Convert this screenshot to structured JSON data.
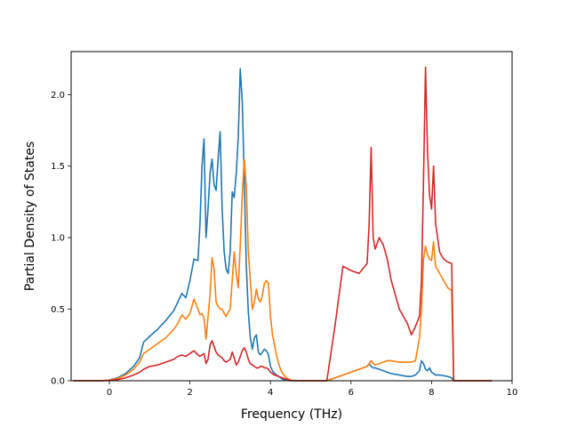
{
  "chart_data": {
    "type": "line",
    "title": "",
    "xlabel": "Frequency (THz)",
    "ylabel": "Partial Density of States",
    "xlim": [
      -0.95,
      10.0
    ],
    "ylim": [
      0.0,
      2.3
    ],
    "xticks": [
      0,
      2,
      4,
      6,
      8,
      10
    ],
    "yticks": [
      0.0,
      0.5,
      1.0,
      1.5,
      2.0
    ],
    "xtick_labels": [
      "0",
      "2",
      "4",
      "6",
      "8",
      "10"
    ],
    "ytick_labels": [
      "0.0",
      "0.5",
      "1.0",
      "1.5",
      "2.0"
    ],
    "grid": false,
    "legend": "none",
    "series": [
      {
        "color": "#1f77b4",
        "x": [
          -0.9,
          -0.2,
          0,
          0.2,
          0.4,
          0.6,
          0.75,
          0.85,
          1.0,
          1.2,
          1.4,
          1.6,
          1.7,
          1.8,
          1.9,
          2.0,
          2.1,
          2.2,
          2.25,
          2.3,
          2.35,
          2.4,
          2.45,
          2.5,
          2.55,
          2.6,
          2.65,
          2.7,
          2.75,
          2.8,
          2.85,
          2.9,
          2.95,
          3.0,
          3.05,
          3.1,
          3.15,
          3.2,
          3.25,
          3.3,
          3.35,
          3.4,
          3.45,
          3.5,
          3.55,
          3.6,
          3.65,
          3.7,
          3.75,
          3.8,
          3.85,
          3.9,
          3.95,
          4.0,
          4.05,
          4.1,
          4.15,
          4.2,
          4.25,
          4.3,
          4.4,
          4.5,
          4.6,
          4.8,
          5.0,
          5.2,
          5.4,
          5.6,
          5.8,
          6.0,
          6.2,
          6.4,
          6.45,
          6.5,
          6.55,
          6.6,
          6.7,
          6.8,
          6.9,
          7.0,
          7.2,
          7.4,
          7.5,
          7.6,
          7.7,
          7.75,
          7.8,
          7.85,
          7.9,
          7.95,
          8.0,
          8.05,
          8.1,
          8.2,
          8.3,
          8.4,
          8.5,
          8.55,
          8.6,
          8.7,
          9.0,
          9.5
        ],
        "y": [
          0,
          0,
          0.005,
          0.02,
          0.05,
          0.1,
          0.16,
          0.27,
          0.31,
          0.36,
          0.42,
          0.49,
          0.55,
          0.61,
          0.58,
          0.7,
          0.85,
          0.84,
          1.1,
          1.5,
          1.69,
          1.0,
          1.2,
          1.45,
          1.55,
          1.37,
          1.33,
          1.55,
          1.74,
          1.2,
          0.9,
          0.78,
          0.75,
          0.9,
          1.32,
          1.28,
          1.45,
          1.7,
          2.18,
          1.95,
          1.4,
          0.8,
          0.48,
          0.3,
          0.22,
          0.3,
          0.32,
          0.2,
          0.18,
          0.2,
          0.22,
          0.21,
          0.18,
          0.1,
          0.07,
          0.05,
          0.04,
          0.03,
          0.02,
          0.01,
          0.003,
          0,
          0,
          0,
          0,
          0,
          0,
          0.02,
          0.04,
          0.06,
          0.08,
          0.1,
          0.12,
          0.1,
          0.09,
          0.09,
          0.08,
          0.07,
          0.06,
          0.05,
          0.04,
          0.03,
          0.03,
          0.04,
          0.07,
          0.14,
          0.12,
          0.08,
          0.07,
          0.09,
          0.06,
          0.05,
          0.04,
          0.04,
          0.035,
          0.03,
          0.02,
          0,
          0,
          0,
          0,
          0
        ]
      },
      {
        "color": "#ff7f0e",
        "x": [
          -0.9,
          -0.2,
          0,
          0.2,
          0.4,
          0.6,
          0.75,
          0.85,
          1.0,
          1.2,
          1.4,
          1.6,
          1.7,
          1.8,
          1.9,
          2.0,
          2.1,
          2.2,
          2.25,
          2.3,
          2.35,
          2.4,
          2.45,
          2.5,
          2.55,
          2.6,
          2.65,
          2.7,
          2.75,
          2.8,
          2.85,
          2.9,
          2.95,
          3.0,
          3.05,
          3.1,
          3.15,
          3.2,
          3.25,
          3.3,
          3.35,
          3.4,
          3.45,
          3.5,
          3.55,
          3.6,
          3.65,
          3.7,
          3.75,
          3.8,
          3.85,
          3.9,
          3.95,
          4.0,
          4.05,
          4.1,
          4.15,
          4.2,
          4.25,
          4.3,
          4.4,
          4.5,
          4.6,
          4.8,
          5.0,
          5.2,
          5.4,
          5.6,
          5.8,
          6.0,
          6.2,
          6.4,
          6.45,
          6.5,
          6.55,
          6.6,
          6.7,
          6.8,
          6.9,
          7.0,
          7.2,
          7.4,
          7.5,
          7.6,
          7.7,
          7.75,
          7.8,
          7.85,
          7.9,
          7.95,
          8.0,
          8.05,
          8.1,
          8.2,
          8.3,
          8.4,
          8.5,
          8.55,
          8.6,
          8.7,
          9.0,
          9.5
        ],
        "y": [
          0,
          0,
          0.005,
          0.015,
          0.04,
          0.08,
          0.13,
          0.19,
          0.22,
          0.26,
          0.3,
          0.36,
          0.4,
          0.46,
          0.43,
          0.47,
          0.57,
          0.5,
          0.46,
          0.47,
          0.44,
          0.29,
          0.45,
          0.6,
          0.86,
          0.78,
          0.55,
          0.52,
          0.5,
          0.5,
          0.47,
          0.45,
          0.48,
          0.5,
          0.7,
          0.9,
          0.75,
          0.65,
          0.95,
          1.3,
          1.55,
          1.35,
          0.9,
          0.7,
          0.5,
          0.55,
          0.64,
          0.57,
          0.55,
          0.6,
          0.68,
          0.7,
          0.68,
          0.45,
          0.32,
          0.25,
          0.18,
          0.12,
          0.08,
          0.05,
          0.02,
          0.005,
          0,
          0,
          0,
          0,
          0,
          0.02,
          0.04,
          0.06,
          0.08,
          0.1,
          0.12,
          0.14,
          0.12,
          0.11,
          0.12,
          0.13,
          0.14,
          0.14,
          0.13,
          0.13,
          0.13,
          0.14,
          0.3,
          0.5,
          0.85,
          0.94,
          0.88,
          0.85,
          0.84,
          0.97,
          0.8,
          0.75,
          0.7,
          0.65,
          0.63,
          0,
          0,
          0,
          0,
          0
        ]
      },
      {
        "color": "#d62728",
        "x": [
          -0.9,
          -0.2,
          0,
          0.2,
          0.4,
          0.6,
          0.75,
          0.85,
          1.0,
          1.2,
          1.4,
          1.6,
          1.7,
          1.8,
          1.9,
          2.0,
          2.1,
          2.2,
          2.25,
          2.3,
          2.35,
          2.4,
          2.45,
          2.5,
          2.55,
          2.6,
          2.65,
          2.7,
          2.75,
          2.8,
          2.85,
          2.9,
          2.95,
          3.0,
          3.05,
          3.1,
          3.15,
          3.2,
          3.25,
          3.3,
          3.35,
          3.4,
          3.45,
          3.5,
          3.55,
          3.6,
          3.65,
          3.7,
          3.75,
          3.8,
          3.85,
          3.9,
          3.95,
          4.0,
          4.05,
          4.1,
          4.15,
          4.2,
          4.25,
          4.3,
          4.4,
          4.5,
          4.6,
          4.8,
          5.0,
          5.2,
          5.4,
          5.6,
          5.8,
          6.0,
          6.2,
          6.4,
          6.45,
          6.5,
          6.55,
          6.6,
          6.7,
          6.8,
          6.9,
          7.0,
          7.2,
          7.4,
          7.5,
          7.6,
          7.7,
          7.75,
          7.8,
          7.85,
          7.9,
          7.95,
          8.0,
          8.05,
          8.1,
          8.2,
          8.3,
          8.4,
          8.5,
          8.55,
          8.6,
          8.7,
          9.0,
          9.5
        ],
        "y": [
          0,
          0,
          0.002,
          0.008,
          0.02,
          0.04,
          0.06,
          0.08,
          0.1,
          0.11,
          0.13,
          0.15,
          0.17,
          0.18,
          0.17,
          0.19,
          0.21,
          0.18,
          0.17,
          0.18,
          0.19,
          0.12,
          0.15,
          0.25,
          0.28,
          0.24,
          0.2,
          0.18,
          0.17,
          0.16,
          0.14,
          0.13,
          0.14,
          0.15,
          0.2,
          0.16,
          0.11,
          0.13,
          0.17,
          0.21,
          0.23,
          0.2,
          0.15,
          0.12,
          0.11,
          0.1,
          0.09,
          0.09,
          0.1,
          0.1,
          0.09,
          0.09,
          0.08,
          0.06,
          0.05,
          0.04,
          0.035,
          0.03,
          0.025,
          0.02,
          0.01,
          0.003,
          0,
          0,
          0,
          0,
          0,
          0.38,
          0.8,
          0.77,
          0.75,
          0.82,
          1.1,
          1.63,
          1.0,
          0.92,
          1.0,
          0.95,
          0.85,
          0.7,
          0.5,
          0.4,
          0.32,
          0.38,
          0.45,
          0.7,
          1.4,
          2.19,
          1.6,
          1.3,
          1.2,
          1.5,
          1.1,
          0.9,
          0.85,
          0.83,
          0.82,
          0,
          0,
          0,
          0,
          0
        ]
      }
    ]
  }
}
